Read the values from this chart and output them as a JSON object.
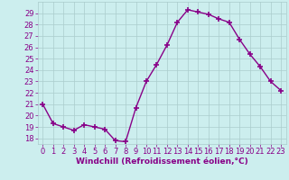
{
  "x": [
    0,
    1,
    2,
    3,
    4,
    5,
    6,
    7,
    8,
    9,
    10,
    11,
    12,
    13,
    14,
    15,
    16,
    17,
    18,
    19,
    20,
    21,
    22,
    23
  ],
  "y": [
    21.0,
    19.3,
    19.0,
    18.7,
    19.2,
    19.0,
    18.8,
    17.8,
    17.7,
    20.7,
    23.0,
    24.5,
    26.2,
    28.2,
    29.3,
    29.1,
    28.9,
    28.5,
    28.2,
    26.7,
    25.4,
    24.3,
    23.0,
    22.2
  ],
  "line_color": "#880088",
  "marker": "+",
  "markersize": 4,
  "markeredgewidth": 1.2,
  "linewidth": 1.0,
  "bg_color": "#cceeee",
  "grid_color": "#aacccc",
  "xlabel": "Windchill (Refroidissement éolien,°C)",
  "xlabel_fontsize": 6.5,
  "ylabel_ticks": [
    18,
    19,
    20,
    21,
    22,
    23,
    24,
    25,
    26,
    27,
    28,
    29
  ],
  "ylim": [
    17.5,
    30.0
  ],
  "xlim": [
    -0.5,
    23.5
  ],
  "xtick_labels": [
    "0",
    "1",
    "2",
    "3",
    "4",
    "5",
    "6",
    "7",
    "8",
    "9",
    "10",
    "11",
    "12",
    "13",
    "14",
    "15",
    "16",
    "17",
    "18",
    "19",
    "20",
    "21",
    "22",
    "23"
  ],
  "tick_fontsize": 6.0,
  "tick_color": "#880088"
}
